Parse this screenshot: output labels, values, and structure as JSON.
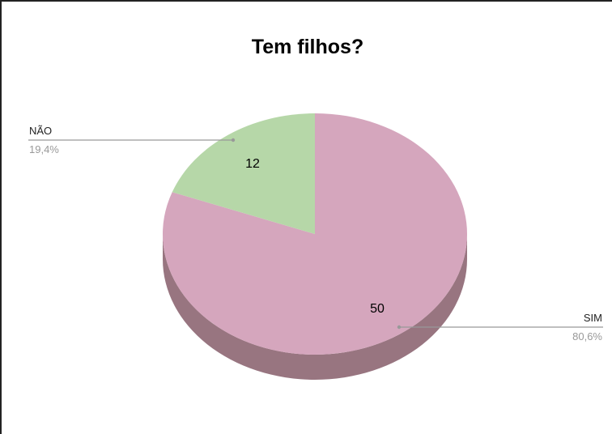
{
  "chart_data": {
    "type": "pie",
    "title": "Tem filhos?",
    "three_d": true,
    "slices": [
      {
        "label": "SIM",
        "value": 50,
        "percent_label": "80,6%",
        "color": "#d5a6bd",
        "side_color": "#987580"
      },
      {
        "label": "NÃO",
        "value": 12,
        "percent_label": "19,4%",
        "color": "#b6d7a8",
        "side_color": "#82997a"
      }
    ],
    "legend_placement": "leader-lines",
    "grid": false
  }
}
